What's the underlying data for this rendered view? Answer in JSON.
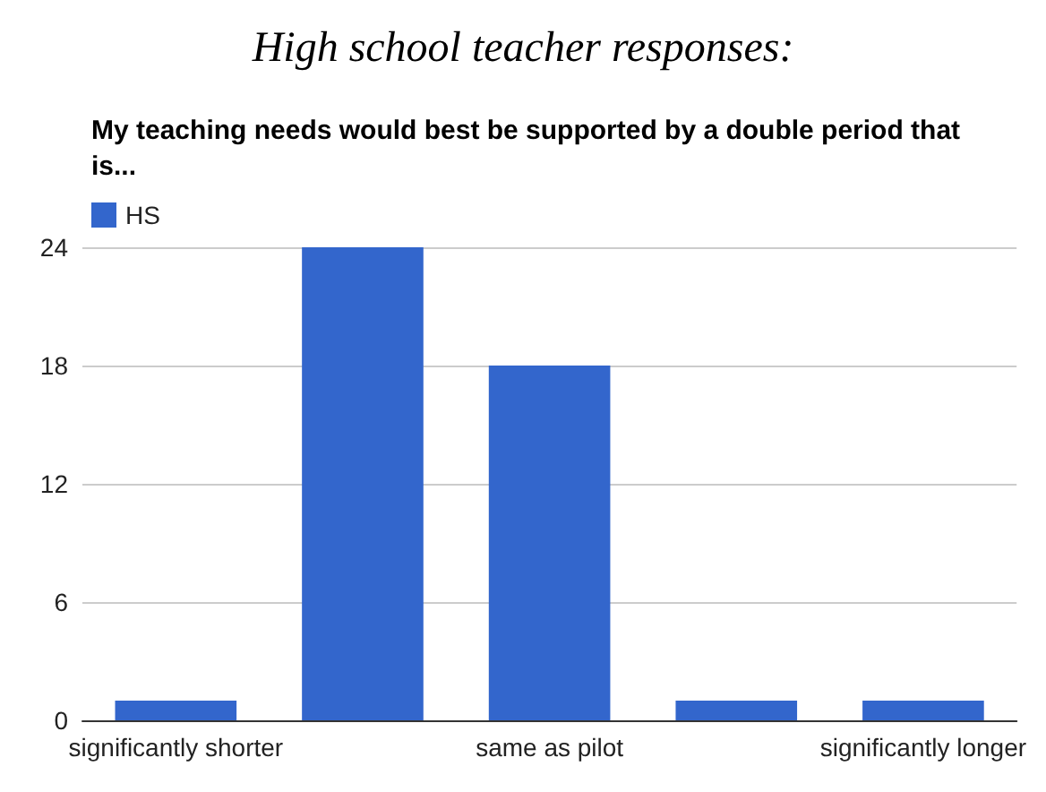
{
  "chart_data": {
    "type": "bar",
    "title": "High school teacher responses:",
    "subtitle": "My teaching needs would best be supported by a double period that is...",
    "categories": [
      "significantly shorter",
      null,
      "same as pilot",
      null,
      "significantly longer"
    ],
    "series": [
      {
        "name": "HS",
        "color": "#3366cc",
        "values": [
          1,
          24,
          18,
          1,
          1
        ]
      }
    ],
    "ylim": [
      0,
      24
    ],
    "yticks": [
      0,
      6,
      12,
      18,
      24
    ],
    "grid": "y",
    "legend": "top left"
  }
}
